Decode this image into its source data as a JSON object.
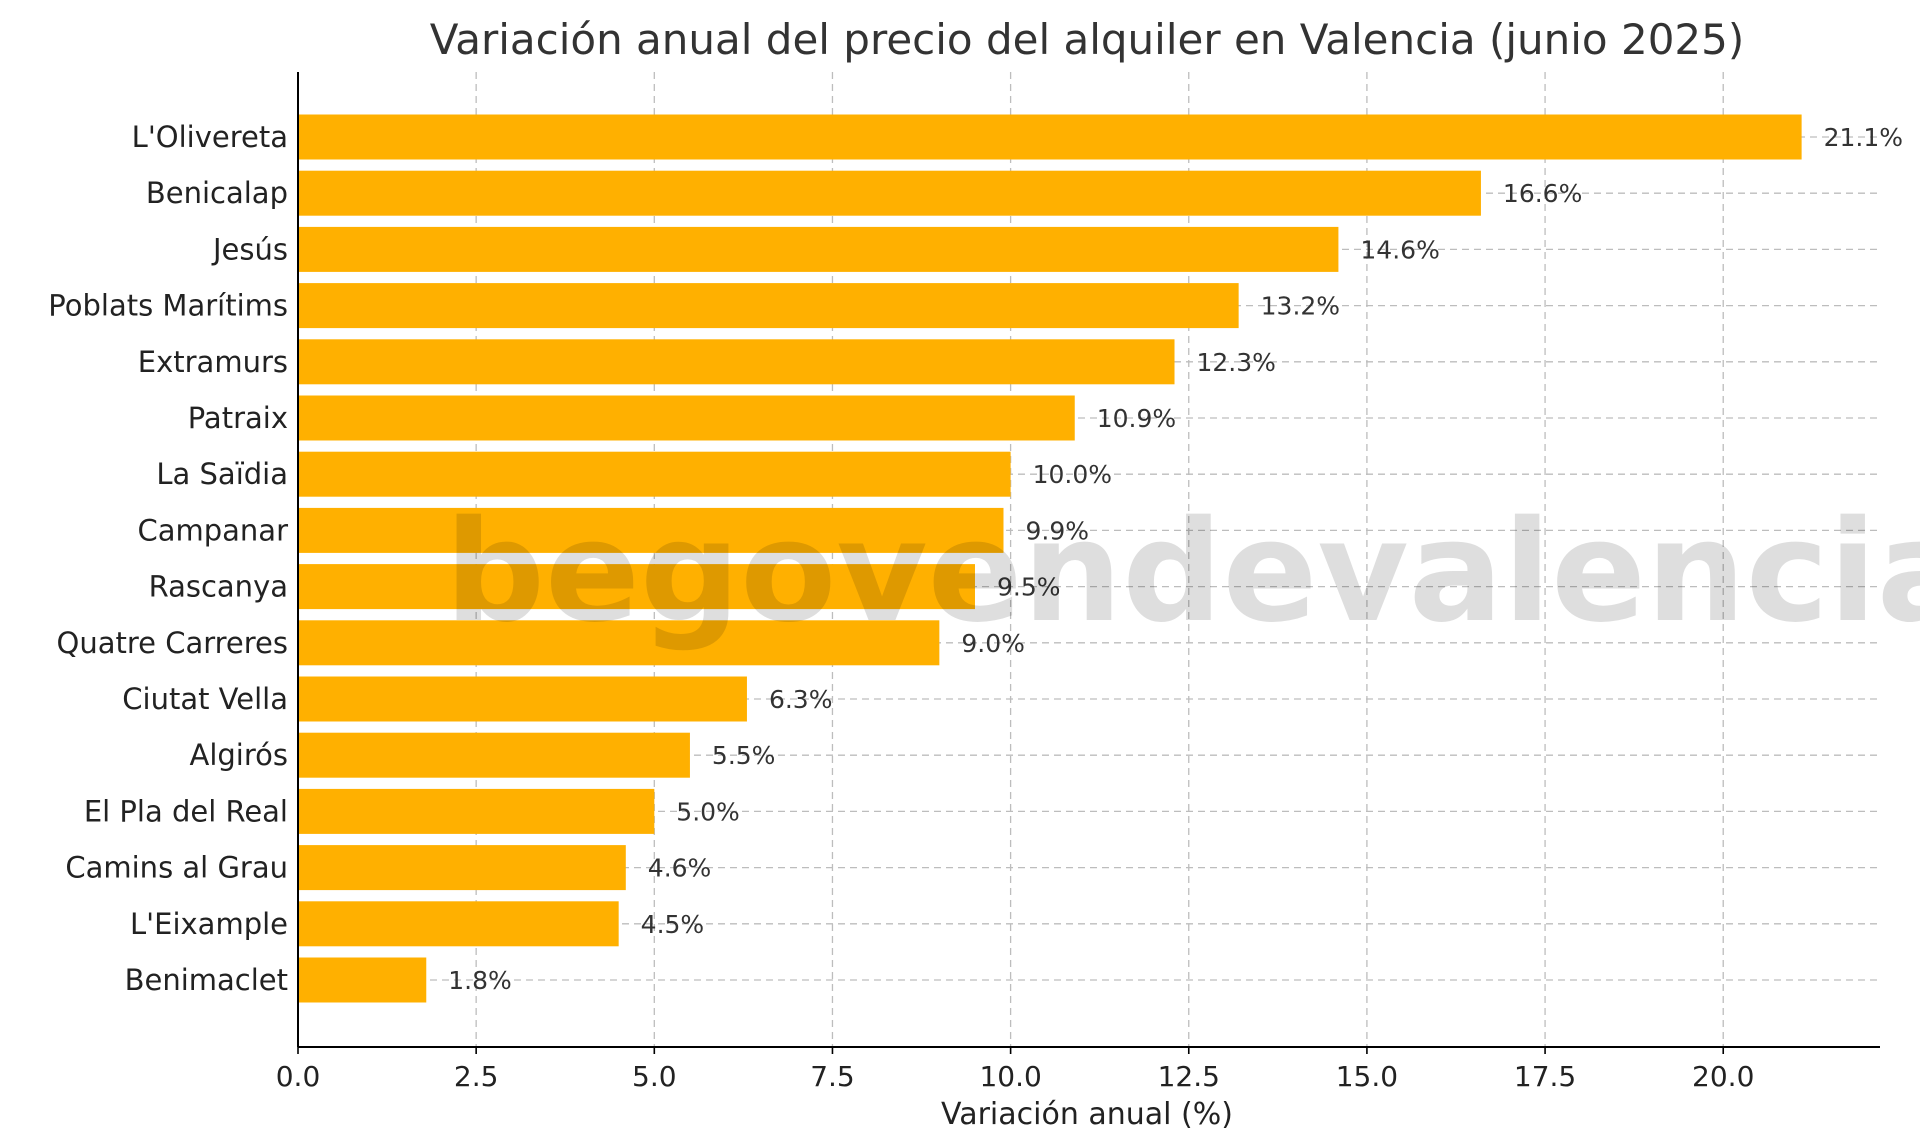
{
  "chart_data": {
    "type": "bar",
    "orientation": "horizontal",
    "title": "Variación anual del precio del alquiler en Valencia (junio 2025)",
    "xlabel": "Variación anual (%)",
    "ylabel": "",
    "xlim": [
      0,
      22.2
    ],
    "xticks": [
      0.0,
      2.5,
      5.0,
      7.5,
      10.0,
      12.5,
      15.0,
      17.5,
      20.0
    ],
    "xtick_labels": [
      "0.0",
      "2.5",
      "5.0",
      "7.5",
      "10.0",
      "12.5",
      "15.0",
      "17.5",
      "20.0"
    ],
    "grid": true,
    "bar_color": "#FFB000",
    "categories": [
      "L'Olivereta",
      "Benicalap",
      "Jesús",
      "Poblats Marítims",
      "Extramurs",
      "Patraix",
      "La Saïdia",
      "Campanar",
      "Rascanya",
      "Quatre Carreres",
      "Ciutat Vella",
      "Algirós",
      "El Pla del Real",
      "Camins al Grau",
      "L'Eixample",
      "Benimaclet"
    ],
    "values": [
      21.1,
      16.6,
      14.6,
      13.2,
      12.3,
      10.9,
      10.0,
      9.9,
      9.5,
      9.0,
      6.3,
      5.5,
      5.0,
      4.6,
      4.5,
      1.8
    ],
    "data_labels": [
      "21.1%",
      "16.6%",
      "14.6%",
      "13.2%",
      "12.3%",
      "10.9%",
      "10.0%",
      "9.9%",
      "9.5%",
      "9.0%",
      "6.3%",
      "5.5%",
      "5.0%",
      "4.6%",
      "4.5%",
      "1.8%"
    ]
  },
  "watermark": "begovendevalencia"
}
